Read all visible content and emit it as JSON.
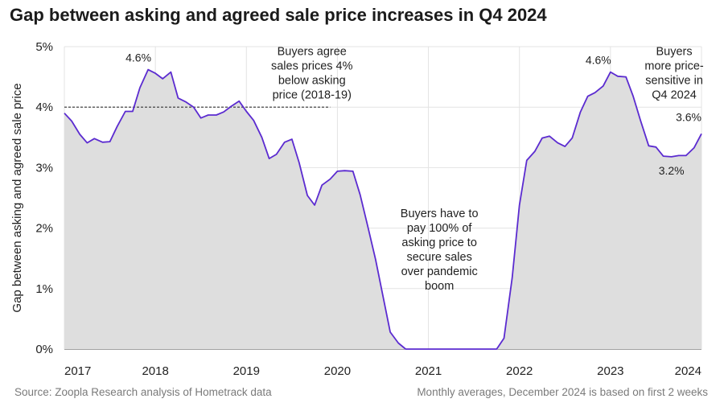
{
  "header": {
    "title": "Gap between asking and agreed sale price increases in Q4 2024"
  },
  "footer": {
    "source": "Source: Zoopla Research analysis of Hometrack data",
    "note": "Monthly averages, December 2024 is based on first 2 weeks"
  },
  "colors": {
    "line": "#5b2bd0",
    "area": "#dedede",
    "grid": "#e3e3e3",
    "reference_line": "#333333"
  },
  "chart_data": {
    "type": "area",
    "title": "Gap between asking and agreed sale price increases in Q4 2024",
    "ylabel": "Gap between asking and agreed sale price",
    "xlabel": "",
    "ylim": [
      0,
      5
    ],
    "xlim": [
      2017,
      2024
    ],
    "grid": "vertical-and-horizontal",
    "x_tick_labels": [
      "2017",
      "2018",
      "2019",
      "2020",
      "2021",
      "2022",
      "2023",
      "2024"
    ],
    "y_tick_labels": [
      "0%",
      "1%",
      "2%",
      "3%",
      "4%",
      "5%"
    ],
    "series": [
      {
        "x": [
          2017.0,
          2017.08,
          2017.17,
          2017.25,
          2017.33,
          2017.42,
          2017.5,
          2017.58,
          2017.67,
          2017.75,
          2017.83,
          2017.92,
          2018.0,
          2018.08,
          2018.17,
          2018.25,
          2018.33,
          2018.42,
          2018.5,
          2018.58,
          2018.67,
          2018.75,
          2018.83,
          2018.92,
          2019.0,
          2019.08,
          2019.17,
          2019.25,
          2019.33,
          2019.42,
          2019.5,
          2019.58,
          2019.67,
          2019.75,
          2019.83,
          2019.92,
          2020.0,
          2020.08,
          2020.17,
          2020.25,
          2020.33,
          2020.42,
          2020.5,
          2020.58,
          2020.67,
          2020.75,
          2020.83,
          2020.92,
          2021.0,
          2021.08,
          2021.17,
          2021.25,
          2021.33,
          2021.42,
          2021.5,
          2021.58,
          2021.67,
          2021.75,
          2021.83,
          2021.92,
          2022.0,
          2022.08,
          2022.17,
          2022.25,
          2022.33,
          2022.42,
          2022.5,
          2022.58,
          2022.67,
          2022.75,
          2022.83,
          2022.92,
          2023.0,
          2023.08,
          2023.17,
          2023.25,
          2023.33,
          2023.42,
          2023.5,
          2023.58,
          2023.67,
          2023.75,
          2023.83,
          2023.92,
          2024.0
        ],
        "values": [
          3.9,
          3.77,
          3.55,
          3.41,
          3.48,
          3.42,
          3.43,
          3.68,
          3.93,
          3.93,
          4.32,
          4.62,
          4.56,
          4.47,
          4.58,
          4.15,
          4.09,
          4.0,
          3.82,
          3.87,
          3.87,
          3.92,
          4.01,
          4.1,
          3.93,
          3.78,
          3.5,
          3.15,
          3.22,
          3.42,
          3.47,
          3.08,
          2.54,
          2.38,
          2.71,
          2.81,
          2.94,
          2.95,
          2.94,
          2.55,
          2.05,
          1.48,
          0.88,
          0.28,
          0.1,
          0.0,
          0.0,
          0.0,
          0.0,
          0.0,
          0.0,
          0.0,
          0.0,
          0.0,
          0.0,
          0.0,
          0.0,
          0.0,
          0.18,
          1.18,
          2.38,
          3.12,
          3.27,
          3.49,
          3.52,
          3.41,
          3.35,
          3.49,
          3.92,
          4.18,
          4.24,
          4.35,
          4.58,
          4.51,
          4.5,
          4.18,
          3.78,
          3.36,
          3.34,
          3.19,
          3.18,
          3.2,
          3.2,
          3.33,
          3.56
        ]
      }
    ],
    "reference_line": {
      "y": 4.0,
      "x_start": 2017.0,
      "x_end": 2019.92,
      "style": "dashed"
    },
    "data_labels": [
      {
        "text": "4.6%",
        "x": 2017.92,
        "y": 4.62
      },
      {
        "text": "4.6%",
        "x": 2022.92,
        "y": 4.58
      },
      {
        "text": "3.2%",
        "x": 2023.67,
        "y": 3.18
      },
      {
        "text": "3.6%",
        "x": 2024.0,
        "y": 3.56
      }
    ],
    "annotations": [
      {
        "lines": [
          "Buyers agree",
          "sales prices 4%",
          "below asking",
          "price (2018-19)"
        ],
        "x": 2019.72,
        "y": 4.93
      },
      {
        "lines": [
          "Buyers have to",
          "pay 100% of",
          "asking price to",
          "secure sales",
          "over pandemic",
          "boom"
        ],
        "x": 2021.12,
        "y": 2.25
      },
      {
        "lines": [
          "Buyers",
          "more price-",
          "sensitive in",
          "Q4 2024"
        ],
        "x": 2023.7,
        "y": 4.93
      }
    ]
  }
}
